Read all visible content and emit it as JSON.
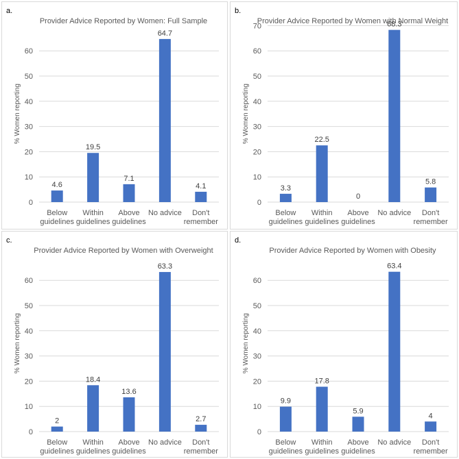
{
  "panels": [
    {
      "id": "a",
      "label": "a."
    },
    {
      "id": "b",
      "label": "b."
    },
    {
      "id": "c",
      "label": "c."
    },
    {
      "id": "d",
      "label": "d."
    }
  ],
  "colors": {
    "bar": "#4472C4",
    "grid": "#d9d9d9",
    "text": "#595959"
  },
  "chart_data": [
    {
      "type": "bar",
      "title": "Provider Advice Reported by Women: Full Sample",
      "categories": [
        [
          "Below",
          "guidelines"
        ],
        [
          "Within",
          "guidelines"
        ],
        [
          "Above",
          "guidelines"
        ],
        [
          "No advice"
        ],
        [
          "Don't",
          "remember"
        ]
      ],
      "values": [
        4.6,
        19.5,
        7.1,
        64.7,
        4.1
      ],
      "data_labels": [
        "4.6",
        "19.5",
        "7.1",
        "64.7",
        "4.1"
      ],
      "ylabel": "% Women reporting",
      "xlabel": "",
      "ylim": [
        0,
        70
      ],
      "yticks": [
        0,
        10,
        20,
        30,
        40,
        50,
        60
      ],
      "grid": true
    },
    {
      "type": "bar",
      "title": "Provider Advice Reported by Women with Normal Weight",
      "categories": [
        [
          "Below",
          "guidelines"
        ],
        [
          "Within",
          "guidelines"
        ],
        [
          "Above",
          "guidelines"
        ],
        [
          "No advice"
        ],
        [
          "Don't",
          "remember"
        ]
      ],
      "values": [
        3.3,
        22.5,
        0,
        68.3,
        5.8
      ],
      "data_labels": [
        "3.3",
        "22.5",
        "0",
        "68.3",
        "5.8"
      ],
      "ylabel": "% Women reporting",
      "xlabel": "",
      "ylim": [
        0,
        70
      ],
      "yticks": [
        0,
        10,
        20,
        30,
        40,
        50,
        60,
        70
      ],
      "grid": true
    },
    {
      "type": "bar",
      "title": "Provider Advice Reported by Women with Overweight",
      "categories": [
        [
          "Below",
          "guidelines"
        ],
        [
          "Within",
          "guidelines"
        ],
        [
          "Above",
          "guidelines"
        ],
        [
          "No advice"
        ],
        [
          "Don't",
          "remember"
        ]
      ],
      "values": [
        2,
        18.4,
        13.6,
        63.3,
        2.7
      ],
      "data_labels": [
        "2",
        "18.4",
        "13.6",
        "63.3",
        "2.7"
      ],
      "ylabel": "% Women reporting",
      "xlabel": "",
      "ylim": [
        0,
        70
      ],
      "yticks": [
        0,
        10,
        20,
        30,
        40,
        50,
        60
      ],
      "grid": true
    },
    {
      "type": "bar",
      "title": "Provider Advice Reported by Women with Obesity",
      "categories": [
        [
          "Below",
          "guidelines"
        ],
        [
          "Within",
          "guidelines"
        ],
        [
          "Above",
          "guidelines"
        ],
        [
          "No advice"
        ],
        [
          "Don't",
          "remember"
        ]
      ],
      "values": [
        9.9,
        17.8,
        5.9,
        63.4,
        4
      ],
      "data_labels": [
        "9.9",
        "17.8",
        "5.9",
        "63.4",
        "4"
      ],
      "ylabel": "% Women reporting",
      "xlabel": "",
      "ylim": [
        0,
        70
      ],
      "yticks": [
        0,
        10,
        20,
        30,
        40,
        50,
        60
      ],
      "grid": true
    }
  ]
}
